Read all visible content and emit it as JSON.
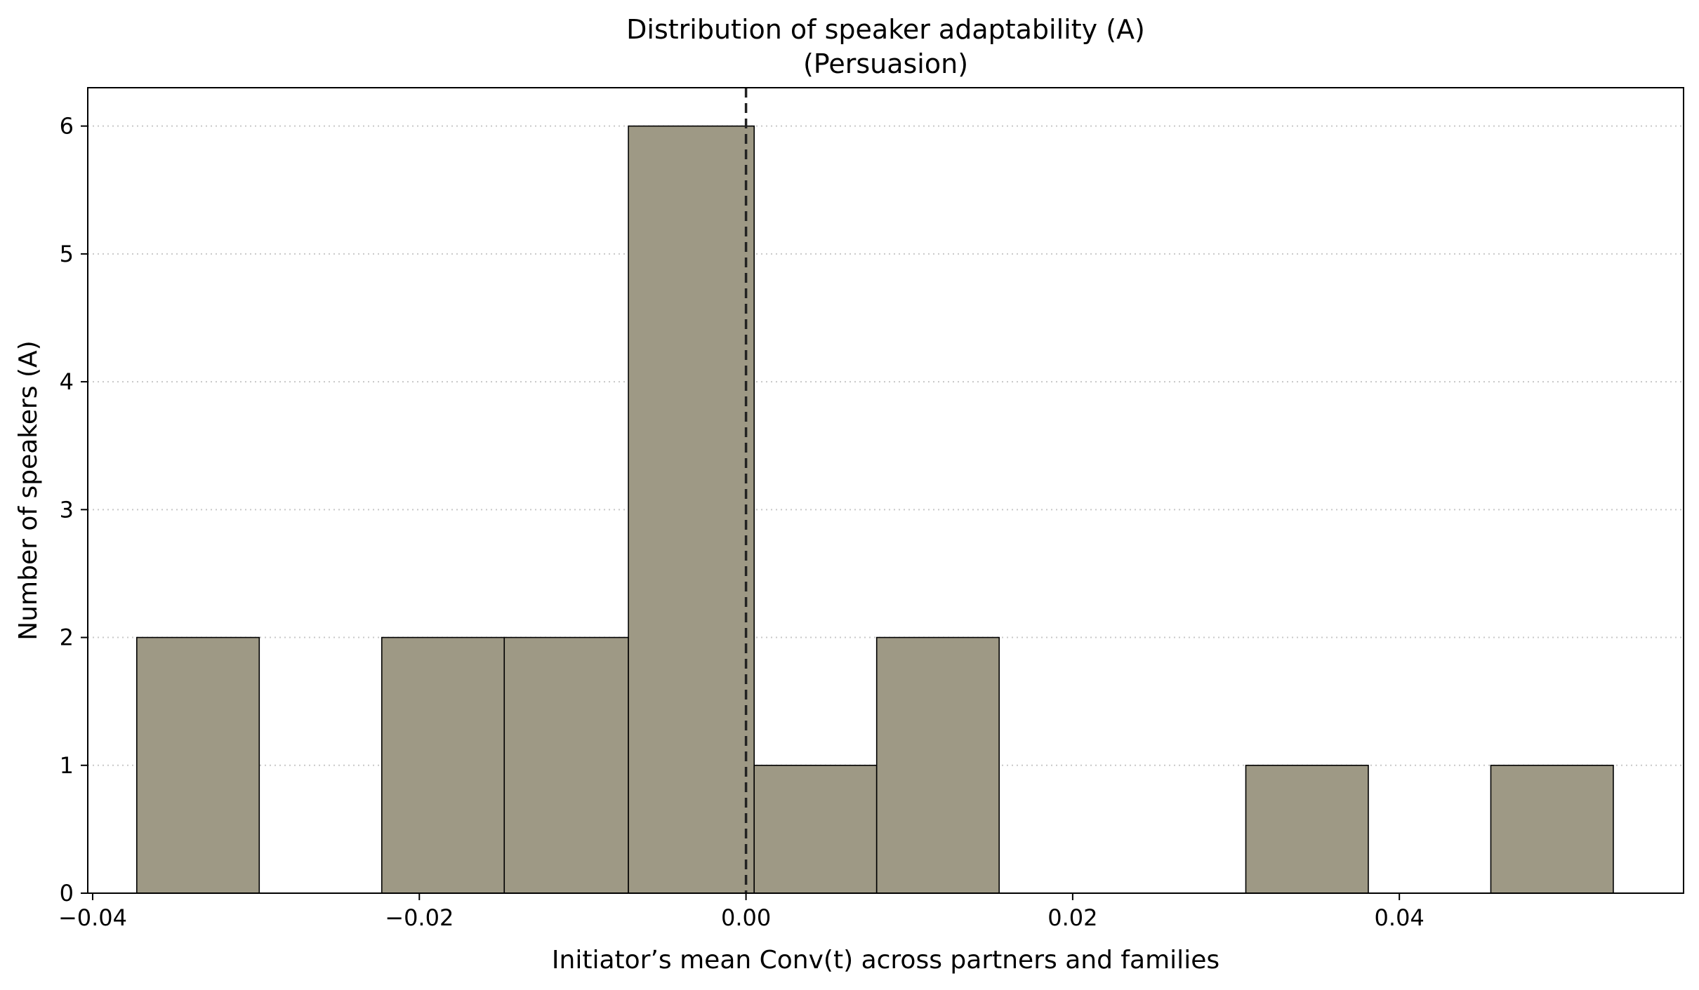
{
  "chart_data": {
    "type": "bar",
    "title": "Distribution of speaker adaptability (A)",
    "subtitle": "(Persuasion)",
    "xlabel": "Initiator’s mean Conv(t) across partners and families",
    "ylabel": "Number of speakers (A)",
    "xlim": [
      -0.0403,
      0.0574
    ],
    "ylim": [
      0,
      6.3
    ],
    "x_ticks": [
      -0.04,
      -0.02,
      0.0,
      0.02,
      0.04
    ],
    "x_tick_labels": [
      "−0.04",
      "−0.02",
      "0.00",
      "0.02",
      "0.04"
    ],
    "y_ticks": [
      0,
      1,
      2,
      3,
      4,
      5,
      6
    ],
    "y_tick_labels": [
      "0",
      "1",
      "2",
      "3",
      "4",
      "5",
      "6"
    ],
    "bin_edges": [
      -0.0373,
      -0.0298,
      -0.0223,
      -0.0148,
      -0.0072,
      0.0005,
      0.008,
      0.0155,
      0.023,
      0.0306,
      0.0381,
      0.0456,
      0.0531
    ],
    "counts": [
      2,
      0,
      2,
      2,
      6,
      1,
      2,
      0,
      0,
      1,
      0,
      1
    ],
    "reference_line_x": 0.0,
    "grid": "y-dotted",
    "colors": {
      "bar_fill": "#9e9985",
      "bar_edge": "#000000",
      "grid": "#c8c8c8",
      "ref_line": "#222222"
    }
  }
}
